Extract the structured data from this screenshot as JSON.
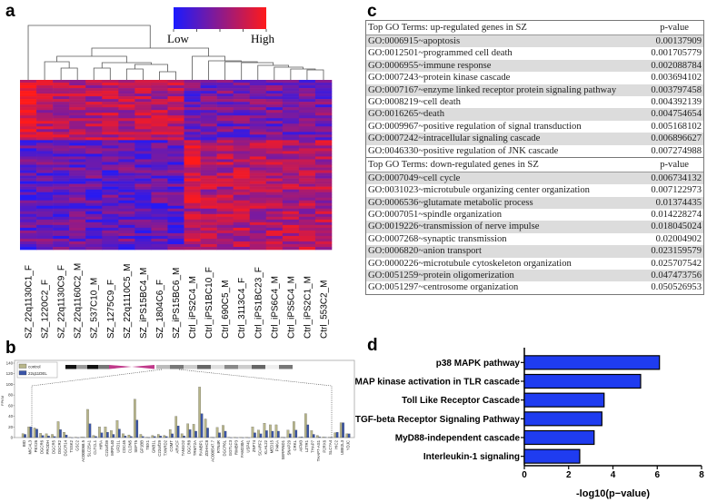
{
  "panels": {
    "a": "a",
    "b": "b",
    "c": "c",
    "d": "d"
  },
  "colors": {
    "low": "#1a1aff",
    "high": "#ff1a1a",
    "control": "#b8b68a",
    "deletion": "#3a55a8",
    "pathway_bar": "#1f3cf0"
  },
  "chart_data": [
    {
      "panel": "a",
      "type": "heatmap",
      "title": "",
      "colorbar": {
        "low_label": "Low",
        "high_label": "High"
      },
      "samples": [
        "SZ_22q1130C1_F",
        "SZ_1220C2_F",
        "SZ_22q1130C9_F",
        "SZ_22q1160C2_M",
        "SZ_537C10_M",
        "SZ_1275C9_F",
        "SZ_22q1110C5_M",
        "SZ_iPS15BC4_M",
        "SZ_1804C6_F",
        "SZ_iPS15BC6_M",
        "Ctrl_iPS2C4_M",
        "Ctrl_iPS1BC10_F",
        "Ctrl_690C5_M",
        "Ctrl_3113C4_F",
        "Ctrl_iPS1BC23_F",
        "Ctrl_iPS6C4_M",
        "Ctrl_iPS5C4_M",
        "Ctrl_iPS2C1_M",
        "Ctrl_553C2_M"
      ],
      "dendrogram": true
    },
    {
      "panel": "b",
      "type": "bar",
      "ylabel": "FPKM",
      "ylim": [
        0,
        140
      ],
      "yticks": [
        "0",
        "20",
        "40",
        "60",
        "80",
        "100",
        "120",
        "140"
      ],
      "legend": {
        "position": "top-left",
        "entries": [
          "control",
          "22q11DEL"
        ]
      },
      "categories": [
        "BID",
        "MICAL3",
        "PEX26",
        "DGCR6",
        "PRODH",
        "DGCR5",
        "DGCR2",
        "DGCR14",
        "TSSK2",
        "GSC2",
        "AC000068.5",
        "SLC25A1",
        "CLTCL1",
        "HIRA",
        "C22orf39",
        "MRPL40",
        "UFD1L",
        "CDC45",
        "CLDN5",
        "SEPT5",
        "GP1BB",
        "TBX1",
        "GNB1L",
        "C22orf29",
        "TXNRD2",
        "COMT",
        "ARVCF",
        "TANGO2",
        "DGCR8",
        "TRMT2A",
        "RANBP1",
        "ZDHHC8",
        "AC006547.7",
        "RTN4R",
        "DGCR6L",
        "GGTLC3",
        "RIMBP3",
        "FAM230A",
        "USP41",
        "ZNF74",
        "SCARF2",
        "KLHL22",
        "MED15",
        "PI4KA",
        "SERPIND1",
        "SNAP29",
        "CRKL",
        "AIFM3",
        "LZTR1",
        "THAP7",
        "THAP7-AS1",
        "P2RX6",
        "SLC7A4",
        "HIC2",
        "UBE2L3",
        "YDJC"
      ],
      "series": [
        {
          "name": "control",
          "values": [
            7.5,
            20,
            18,
            8,
            7,
            6,
            30,
            10,
            0.5,
            0.5,
            1,
            53,
            4,
            20,
            20,
            13,
            32,
            7,
            5,
            72,
            6,
            0.5,
            4,
            6,
            4,
            15,
            40,
            7,
            26,
            25,
            95,
            35,
            0.5,
            19,
            23,
            0.5,
            0.3,
            0.3,
            0.3,
            20,
            14,
            27,
            24,
            24,
            0.5,
            14,
            30,
            1,
            45,
            13,
            4,
            1,
            0.5,
            9,
            28,
            7
          ]
        },
        {
          "name": "22q11DEL",
          "values": [
            6,
            20,
            16,
            4,
            3,
            2,
            15,
            5,
            0,
            0,
            0.5,
            26,
            2,
            9,
            10,
            6,
            16,
            3,
            2,
            33,
            2,
            0.3,
            2,
            3,
            2,
            7,
            22,
            3,
            15,
            12,
            45,
            18,
            0.3,
            9,
            12,
            0,
            0,
            0,
            0,
            9,
            7,
            13,
            12,
            12,
            0.3,
            7,
            14,
            1,
            24,
            6,
            1,
            0.5,
            0.3,
            10,
            28,
            7
          ]
        }
      ]
    },
    {
      "panel": "c",
      "type": "table",
      "sections": [
        {
          "title": "Top GO Terms: up-regulated genes in SZ",
          "value_header": "p-value",
          "rows": [
            [
              "GO:0006915~apoptosis",
              "0.00137909"
            ],
            [
              "GO:0012501~programmed cell death",
              "0.001705779"
            ],
            [
              "GO:0006955~immune response",
              "0.002088784"
            ],
            [
              "GO:0007243~protein kinase cascade",
              "0.003694102"
            ],
            [
              "GO:0007167~enzyme linked receptor protein signaling pathway",
              "0.003797458"
            ],
            [
              "GO:0008219~cell death",
              "0.004392139"
            ],
            [
              "GO:0016265~death",
              "0.004754654"
            ],
            [
              "GO:0009967~positive regulation of signal transduction",
              "0.005168102"
            ],
            [
              "GO:0007242~intracellular signaling cascade",
              "0.006896627"
            ],
            [
              "GO:0046330~positive regulation of JNK cascade",
              "0.007274988"
            ]
          ]
        },
        {
          "title": "Top GO Terms: down-regulated genes in SZ",
          "value_header": "p-value",
          "rows": [
            [
              "GO:0007049~cell cycle",
              "0.006734132"
            ],
            [
              "GO:0031023~microtubule organizing center organization",
              "0.007122973"
            ],
            [
              "GO:0006536~glutamate metabolic process",
              "0.01374435"
            ],
            [
              "GO:0007051~spindle organization",
              "0.014228274"
            ],
            [
              "GO:0019226~transmission of nerve impulse",
              "0.018045024"
            ],
            [
              "GO:0007268~synaptic transmission",
              "0.02004902"
            ],
            [
              "GO:0006820~anion transport",
              "0.023159579"
            ],
            [
              "GO:0000226~microtubule cytoskeleton organization",
              "0.025707542"
            ],
            [
              "GO:0051259~protein oligomerization",
              "0.047473756"
            ],
            [
              "GO:0051297~centrosome organization",
              "0.050526953"
            ]
          ]
        }
      ]
    },
    {
      "panel": "d",
      "type": "bar",
      "orientation": "horizontal",
      "xlabel": "-log10(p−value)",
      "xlim": [
        0,
        8
      ],
      "xticks": [
        "0",
        "2",
        "4",
        "6",
        "8"
      ],
      "categories": [
        "p38 MAPK pathway",
        "MAP kinase activation in TLR cascade",
        "Toll Like Receptor Cascade",
        "TGF-beta Receptor Signaling Pathway",
        "MyD88-independent cascade",
        "Interleukin-1 signaling"
      ],
      "values": [
        6.1,
        5.25,
        3.6,
        3.5,
        3.15,
        2.5
      ]
    }
  ]
}
